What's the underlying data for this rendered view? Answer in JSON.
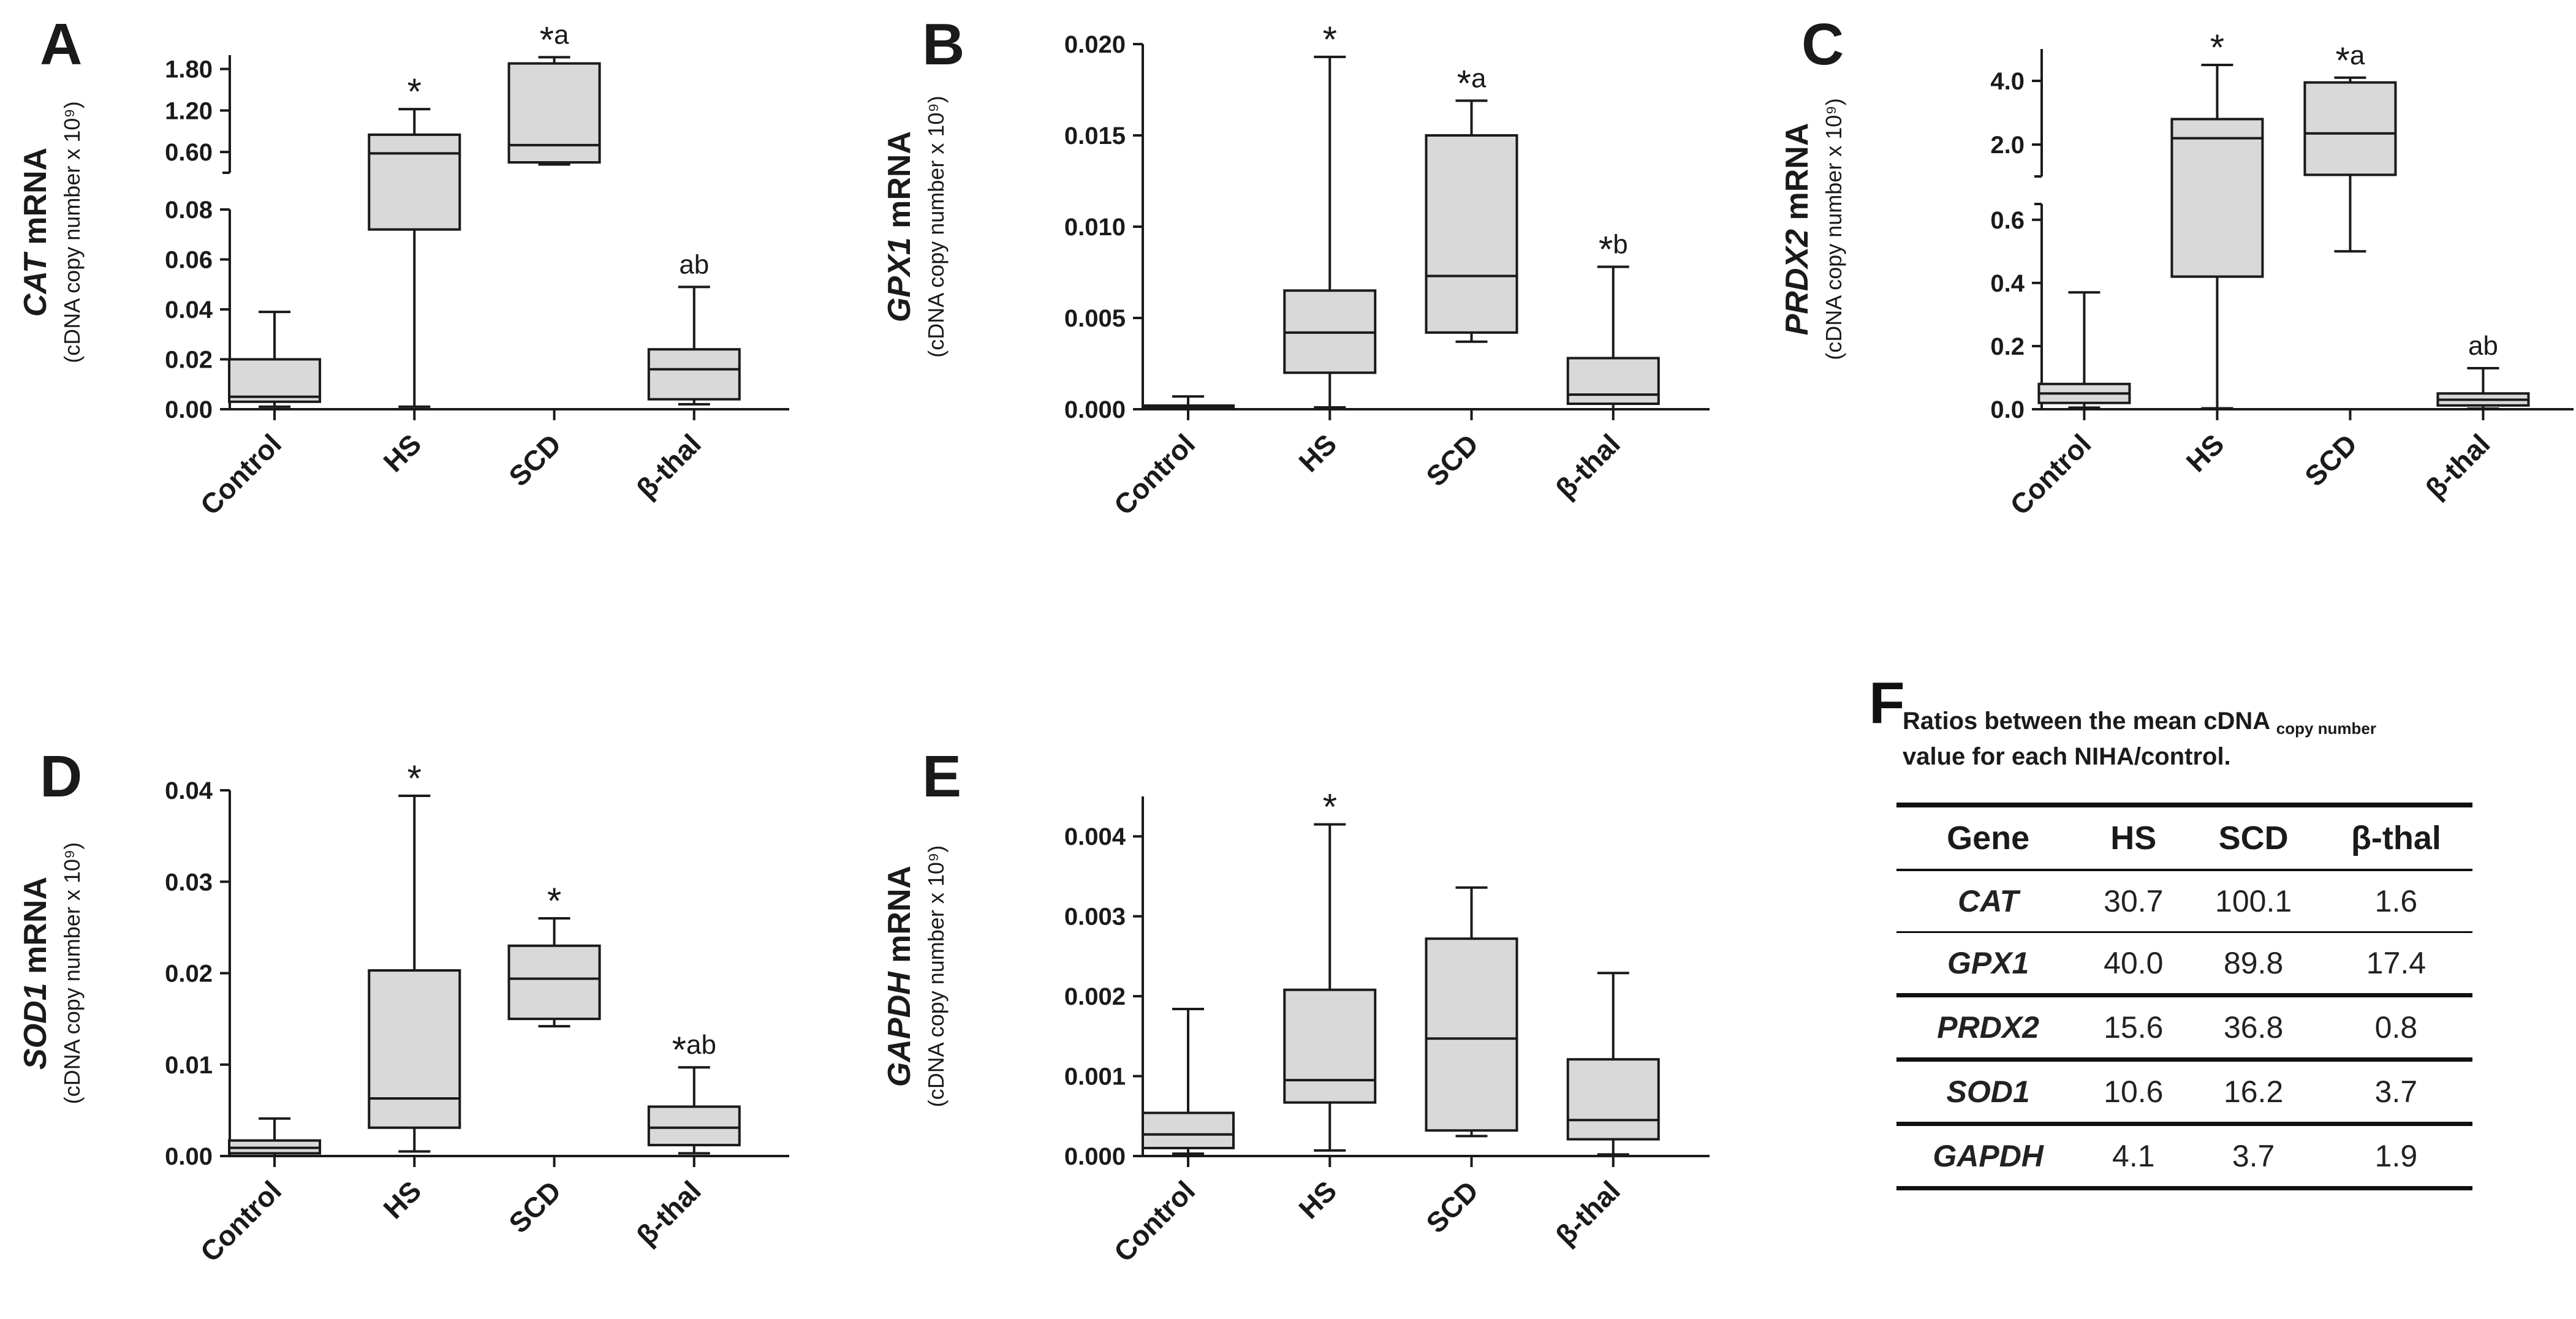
{
  "figure": {
    "categories": [
      "Control",
      "HS",
      "SCD",
      "β-thal"
    ],
    "ylabel_units": "(cDNA copy number x 10⁹)"
  },
  "chart_data": [
    {
      "panel": "A",
      "type": "box",
      "gene": "CAT",
      "ylabel_suffix": " mRNA",
      "categories": [
        "Control",
        "HS",
        "SCD",
        "β-thal"
      ],
      "ylabel_units": "(cDNA copy number x 10⁹)",
      "broken_axis": true,
      "lower_range": [
        0,
        0.08
      ],
      "upper_range": [
        0.3,
        2.0
      ],
      "lower_ticks": [
        "0.00",
        "0.02",
        "0.04",
        "0.06",
        "0.08"
      ],
      "upper_ticks": [
        "0.60",
        "1.20",
        "1.80"
      ],
      "boxes": [
        {
          "min": 0.001,
          "q1": 0.003,
          "median": 0.005,
          "q3": 0.02,
          "max": 0.039,
          "annotation": ""
        },
        {
          "min": 0.001,
          "q1": 0.072,
          "median": 0.58,
          "q3": 0.85,
          "max": 1.22,
          "annotation": "*"
        },
        {
          "min": 0.42,
          "q1": 0.45,
          "median": 0.7,
          "q3": 1.88,
          "max": 1.97,
          "annotation": "*a"
        },
        {
          "min": 0.002,
          "q1": 0.004,
          "median": 0.016,
          "q3": 0.024,
          "max": 0.049,
          "annotation": "ab"
        }
      ]
    },
    {
      "panel": "B",
      "type": "box",
      "gene": "GPX1",
      "ylabel_suffix": " mRNA",
      "categories": [
        "Control",
        "HS",
        "SCD",
        "β-thal"
      ],
      "ylabel_units": "(cDNA copy number x 10⁹)",
      "broken_axis": false,
      "ylim": [
        0,
        0.02
      ],
      "ticks": [
        "0.000",
        "0.005",
        "0.010",
        "0.015",
        "0.020"
      ],
      "boxes": [
        {
          "min": 0.0,
          "q1": 0.0,
          "median": 0.0001,
          "q3": 0.0002,
          "max": 0.0007,
          "annotation": ""
        },
        {
          "min": 0.0001,
          "q1": 0.002,
          "median": 0.0042,
          "q3": 0.0065,
          "max": 0.0193,
          "annotation": "*"
        },
        {
          "min": 0.0037,
          "q1": 0.0042,
          "median": 0.0073,
          "q3": 0.015,
          "max": 0.0169,
          "annotation": "*a"
        },
        {
          "min": 0.0,
          "q1": 0.0003,
          "median": 0.0008,
          "q3": 0.0028,
          "max": 0.0078,
          "annotation": "*b"
        }
      ]
    },
    {
      "panel": "C",
      "type": "box",
      "gene": "PRDX2",
      "ylabel_suffix": " mRNA",
      "categories": [
        "Control",
        "HS",
        "SCD",
        "β-thal"
      ],
      "ylabel_units": "(cDNA copy number x 10⁹)",
      "broken_axis": true,
      "lower_range": [
        0,
        0.65
      ],
      "upper_range": [
        1.0,
        5.0
      ],
      "lower_ticks": [
        "0.0",
        "0.2",
        "0.4",
        "0.6"
      ],
      "upper_ticks": [
        "2.0",
        "4.0"
      ],
      "boxes": [
        {
          "min": 0.005,
          "q1": 0.02,
          "median": 0.05,
          "q3": 0.08,
          "max": 0.37,
          "annotation": ""
        },
        {
          "min": 0.003,
          "q1": 0.42,
          "median": 2.2,
          "q3": 2.8,
          "max": 4.5,
          "annotation": "*"
        },
        {
          "min": 0.5,
          "q1": 1.05,
          "median": 2.35,
          "q3": 3.95,
          "max": 4.1,
          "annotation": "*a"
        },
        {
          "min": 0.002,
          "q1": 0.012,
          "median": 0.03,
          "q3": 0.05,
          "max": 0.13,
          "annotation": "ab"
        }
      ]
    },
    {
      "panel": "D",
      "type": "box",
      "gene": "SOD1",
      "ylabel_suffix": " mRNA",
      "categories": [
        "Control",
        "HS",
        "SCD",
        "β-thal"
      ],
      "ylabel_units": "(cDNA copy number x 10⁹)",
      "broken_axis": false,
      "ylim": [
        0,
        0.04
      ],
      "ticks": [
        "0.00",
        "0.01",
        "0.02",
        "0.03",
        "0.04"
      ],
      "boxes": [
        {
          "min": 0.0,
          "q1": 0.0003,
          "median": 0.0009,
          "q3": 0.0017,
          "max": 0.0041,
          "annotation": ""
        },
        {
          "min": 0.0005,
          "q1": 0.0031,
          "median": 0.0063,
          "q3": 0.0203,
          "max": 0.0394,
          "annotation": "*"
        },
        {
          "min": 0.0142,
          "q1": 0.015,
          "median": 0.0194,
          "q3": 0.023,
          "max": 0.026,
          "annotation": "*"
        },
        {
          "min": 0.0003,
          "q1": 0.0012,
          "median": 0.0031,
          "q3": 0.0054,
          "max": 0.0097,
          "annotation": "*ab"
        }
      ]
    },
    {
      "panel": "E",
      "type": "box",
      "gene": "GAPDH",
      "ylabel_suffix": " mRNA",
      "categories": [
        "Control",
        "HS",
        "SCD",
        "β-thal"
      ],
      "ylabel_units": "(cDNA copy number x 10⁹)",
      "broken_axis": false,
      "ylim": [
        0,
        0.0045
      ],
      "ticks": [
        "0.000",
        "0.001",
        "0.002",
        "0.003",
        "0.004"
      ],
      "boxes": [
        {
          "min": 3e-05,
          "q1": 0.0001,
          "median": 0.00027,
          "q3": 0.00054,
          "max": 0.00184,
          "annotation": ""
        },
        {
          "min": 7e-05,
          "q1": 0.00067,
          "median": 0.00095,
          "q3": 0.00208,
          "max": 0.00415,
          "annotation": "*"
        },
        {
          "min": 0.00025,
          "q1": 0.00032,
          "median": 0.00147,
          "q3": 0.00272,
          "max": 0.00336,
          "annotation": ""
        },
        {
          "min": 2e-05,
          "q1": 0.00021,
          "median": 0.00045,
          "q3": 0.00121,
          "max": 0.00229,
          "annotation": ""
        }
      ]
    },
    {
      "panel": "F",
      "type": "table",
      "caption_line1_prefix": "Ratios between the mean cDNA ",
      "caption_line1_sub": "copy number",
      "caption_line2": "value for each NIHA/control.",
      "columns": [
        "Gene",
        "HS",
        "SCD",
        "β-thal"
      ],
      "rows": [
        {
          "gene": "CAT",
          "values": [
            "30.7",
            "100.1",
            "1.6"
          ]
        },
        {
          "gene": "GPX1",
          "values": [
            "40.0",
            "89.8",
            "17.4"
          ]
        },
        {
          "gene": "PRDX2",
          "values": [
            "15.6",
            "36.8",
            "0.8"
          ]
        },
        {
          "gene": "SOD1",
          "values": [
            "10.6",
            "16.2",
            "3.7"
          ]
        },
        {
          "gene": "GAPDH",
          "values": [
            "4.1",
            "3.7",
            "1.9"
          ]
        }
      ]
    }
  ],
  "colors": {
    "box_fill": "#d9d9d9",
    "stroke": "#1a1a1a"
  }
}
